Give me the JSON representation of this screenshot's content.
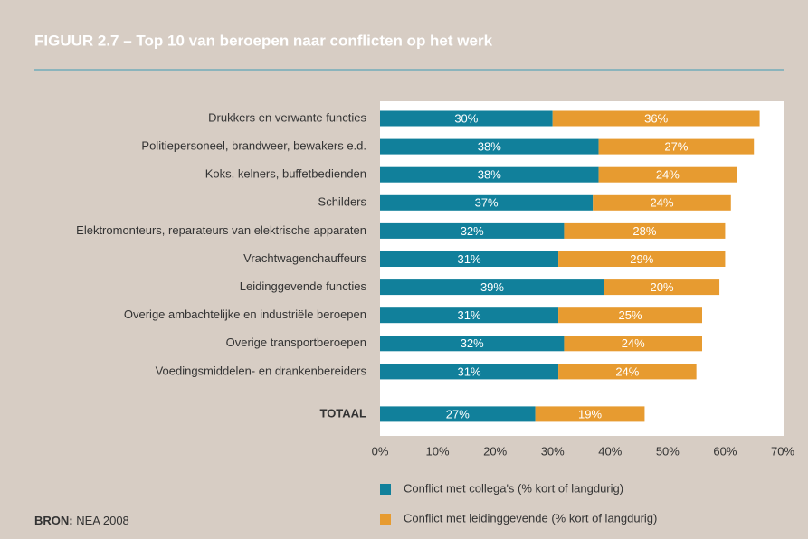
{
  "chart_data": {
    "type": "stacked_barh",
    "title": "FIGUUR 2.7  –  Top 10 van beroepen naar conflicten op het werk",
    "categories": [
      "Drukkers en verwante functies",
      "Politiepersoneel, brandweer, bewakers e.d.",
      "Koks, kelners, buffetbedienden",
      "Schilders",
      "Elektromonteurs, reparateurs van elektrische apparaten",
      "Vrachtwagenchauffeurs",
      "Leidinggevende functies",
      "Overige ambachtelijke en industriële beroepen",
      "Overige transportberoepen",
      "Voedingsmiddelen- en drankenbereiders",
      "TOTAAL"
    ],
    "series": [
      {
        "name": "Conflict met collega's (% kort of langdurig)",
        "color": "#11809b",
        "values": [
          30,
          38,
          38,
          37,
          32,
          31,
          39,
          31,
          32,
          31,
          27
        ],
        "value_labels": [
          "30%",
          "38%",
          "38%",
          "37%",
          "32%",
          "31%",
          "39%",
          "31%",
          "32%",
          "31%",
          "27%"
        ]
      },
      {
        "name": "Conflict met leidinggevende (% kort of langdurig)",
        "color": "#e79b30",
        "values": [
          36,
          27,
          24,
          24,
          28,
          29,
          20,
          25,
          24,
          24,
          19
        ],
        "value_labels": [
          "36%",
          "27%",
          "24%",
          "24%",
          "28%",
          "29%",
          "20%",
          "25%",
          "24%",
          "24%",
          "19%"
        ]
      }
    ],
    "xlim": [
      0,
      70
    ],
    "xticks": [
      {
        "value": 0,
        "label": "0%"
      },
      {
        "value": 10,
        "label": "10%"
      },
      {
        "value": 20,
        "label": "20%"
      },
      {
        "value": 30,
        "label": "30%"
      },
      {
        "value": 40,
        "label": "40%"
      },
      {
        "value": 50,
        "label": "50%"
      },
      {
        "value": 60,
        "label": "60%"
      },
      {
        "value": 70,
        "label": "70%"
      }
    ],
    "grid": false
  },
  "source": {
    "label": "BRON:",
    "text": "NEA 2008"
  }
}
